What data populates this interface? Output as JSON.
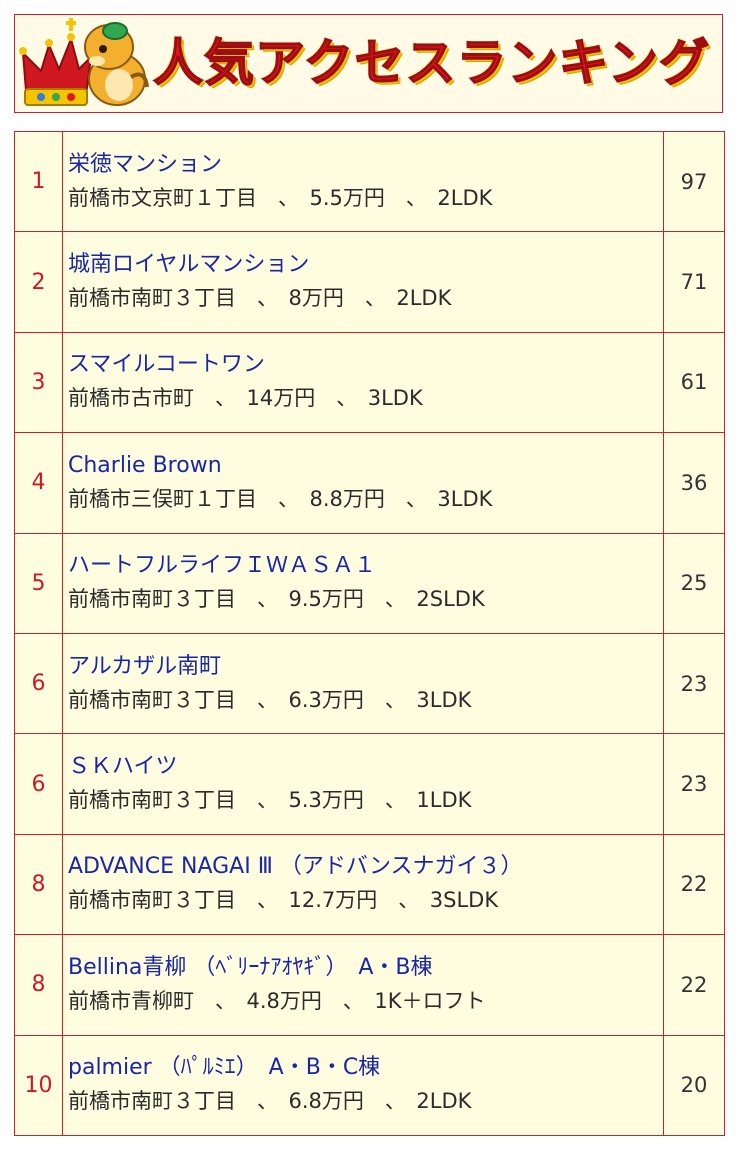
{
  "header": {
    "title": "人気アクセスランキング",
    "colors": {
      "title": "#e8141b",
      "border": "#c8232a",
      "link": "#1a26a8",
      "row_bg": "#fffde0"
    }
  },
  "ranking": [
    {
      "rank": "1",
      "name": "栄徳マンション",
      "detail": "前橋市文京町１丁目　、　5.5万円　、　2LDK",
      "count": "97"
    },
    {
      "rank": "2",
      "name": "城南ロイヤルマンション",
      "detail": "前橋市南町３丁目　、　8万円　、　2LDK",
      "count": "71"
    },
    {
      "rank": "3",
      "name": "スマイルコートワン",
      "detail": "前橋市古市町　、　14万円　、　3LDK",
      "count": "61"
    },
    {
      "rank": "4",
      "name": "Charlie Brown",
      "detail": "前橋市三俣町１丁目　、　8.8万円　、　3LDK",
      "count": "36"
    },
    {
      "rank": "5",
      "name": "ハートフルライフＩＷＡＳＡ１",
      "detail": "前橋市南町３丁目　、　9.5万円　、　2SLDK",
      "count": "25"
    },
    {
      "rank": "6",
      "name": "アルカザル南町",
      "detail": "前橋市南町３丁目　、　6.3万円　、　3LDK",
      "count": "23"
    },
    {
      "rank": "6",
      "name": "ＳＫハイツ",
      "detail": "前橋市南町３丁目　、　5.3万円　、　1LDK",
      "count": "23"
    },
    {
      "rank": "8",
      "name": "ADVANCE NAGAI Ⅲ （アドバンスナガイ３）",
      "detail": "前橋市南町３丁目　、　12.7万円　、　3SLDK",
      "count": "22"
    },
    {
      "rank": "8",
      "name": "Bellina青柳 （ﾍﾞﾘｰﾅｱｵﾔｷﾞ）　A・B棟",
      "detail": "前橋市青柳町　、　4.8万円　、　1K＋ロフト",
      "count": "22"
    },
    {
      "rank": "10",
      "name": "palmier （ﾊﾟﾙﾐｴ）　A・B・C棟",
      "detail": "前橋市南町３丁目　、　6.8万円　、　2LDK",
      "count": "20"
    }
  ]
}
